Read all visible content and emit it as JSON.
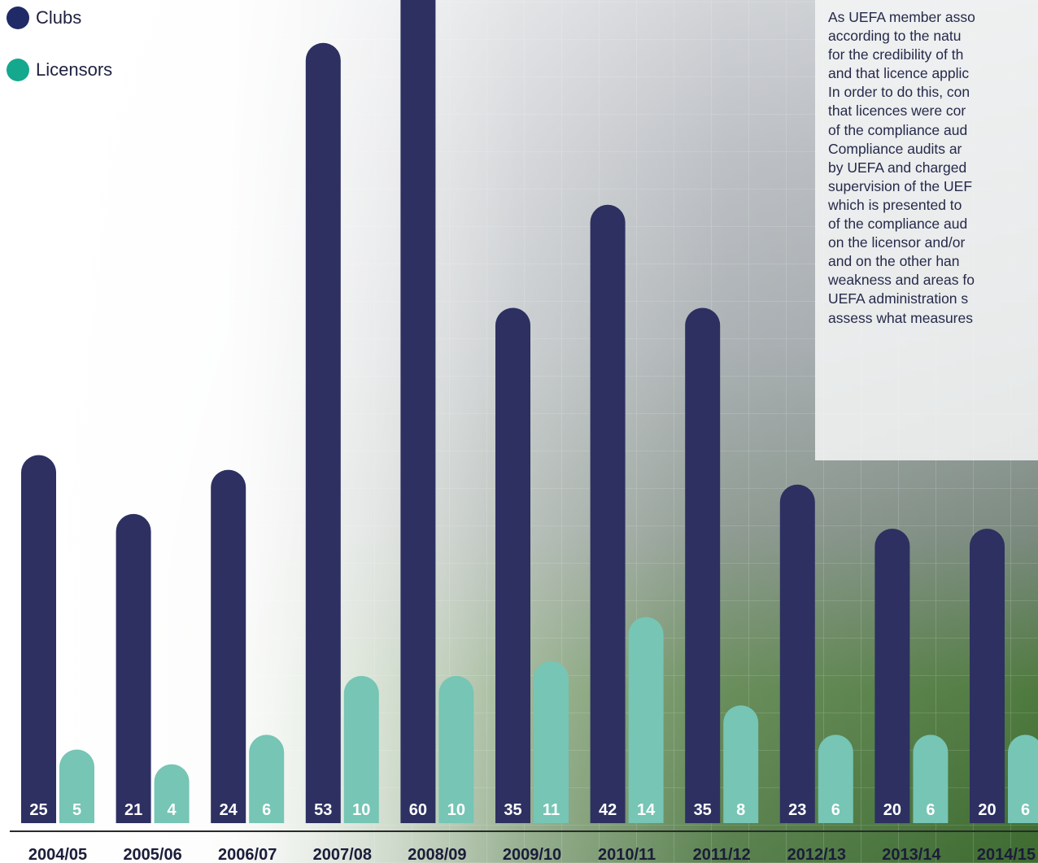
{
  "colors": {
    "clubs": "#2d3061",
    "licensors": "#76c5b5",
    "axis": "#2a2a2a",
    "text": "#262a4a"
  },
  "legend": {
    "items": [
      {
        "label": "Clubs",
        "color": "#1f2a66"
      },
      {
        "label": "Licensors",
        "color": "#14a88e"
      }
    ]
  },
  "text_panel": {
    "lines": [
      "As UEFA member asso",
      "according to the natu",
      "for the credibility of th",
      "and that licence applic",
      "In order to do this, con",
      "that licences were cor",
      "of the compliance aud",
      "Compliance audits ar",
      "by UEFA and charged",
      "supervision of the UEF",
      "which is presented to",
      "of the compliance aud",
      "on the licensor and/or",
      "and on the other han",
      "weakness and areas fo",
      "UEFA administration s",
      "assess what measures"
    ]
  },
  "chart_data": {
    "type": "bar",
    "categories": [
      "2004/05",
      "2005/06",
      "2006/07",
      "2007/08",
      "2008/09",
      "2009/10",
      "2010/11",
      "2011/12",
      "2012/13",
      "2013/14",
      "2014/15"
    ],
    "series": [
      {
        "name": "Clubs",
        "values": [
          25,
          21,
          24,
          53,
          60,
          35,
          42,
          35,
          23,
          20,
          20
        ]
      },
      {
        "name": "Licensors",
        "values": [
          5,
          4,
          6,
          10,
          10,
          11,
          14,
          8,
          6,
          6,
          6
        ]
      }
    ]
  }
}
